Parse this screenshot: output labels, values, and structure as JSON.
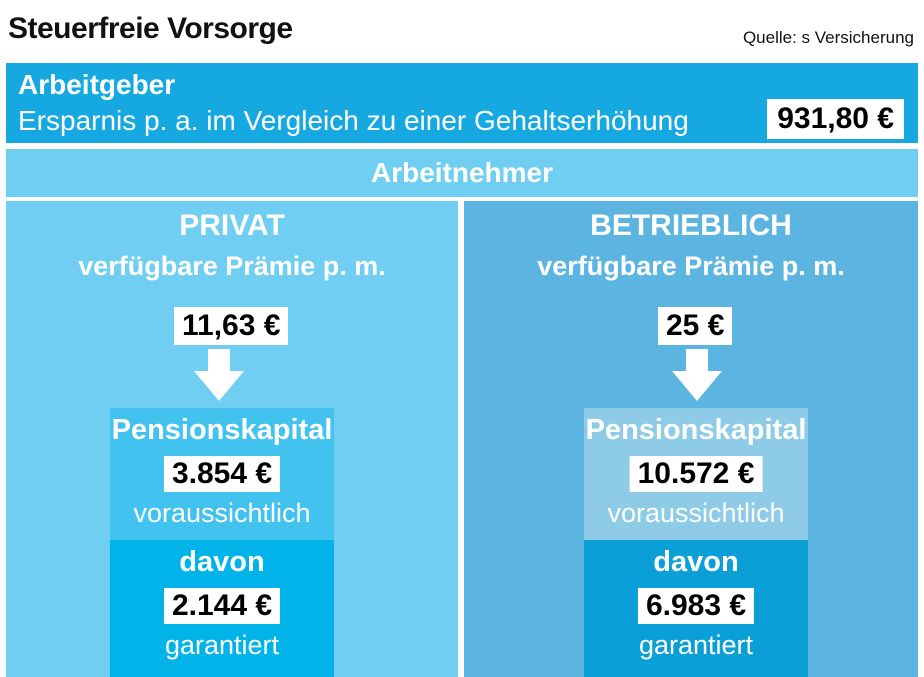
{
  "header": {
    "title": "Steuerfreie Vorsorge",
    "source": "Quelle: s Versicherung"
  },
  "employer": {
    "heading": "Arbeitgeber",
    "description": "Ersparnis p. a. im Vergleich zu einer Gehaltserhöhung",
    "amount": "931,80 €"
  },
  "employee": {
    "heading": "Arbeitnehmer",
    "columns": [
      {
        "title": "PRIVAT",
        "subtitle": "verfügbare Prämie p. m.",
        "premium": "11,63 €",
        "capital_label": "Pensionskapital",
        "capital_value": "3.854 €",
        "capital_note": "voraussichtlich",
        "guaranteed_label": "davon",
        "guaranteed_value": "2.144 €",
        "guaranteed_note": "garantiert"
      },
      {
        "title": "BETRIEBLICH",
        "subtitle": "verfügbare Prämie p. m.",
        "premium": "25 €",
        "capital_label": "Pensionskapital",
        "capital_value": "10.572 €",
        "capital_note": "voraussichtlich",
        "guaranteed_label": "davon",
        "guaranteed_value": "6.983 €",
        "guaranteed_note": "garantiert"
      }
    ]
  },
  "colors": {
    "employer_bg": "#16a9e1",
    "employee_bar_bg": "#6fcef2",
    "private_bg": "#6fcef2",
    "company_bg": "#5cb5e0",
    "private_capital_bg": "#41c2ef",
    "private_guaranteed_bg": "#00b4ea",
    "company_capital_bg": "#8dcbe6",
    "company_guaranteed_bg": "#0a9fd6"
  }
}
